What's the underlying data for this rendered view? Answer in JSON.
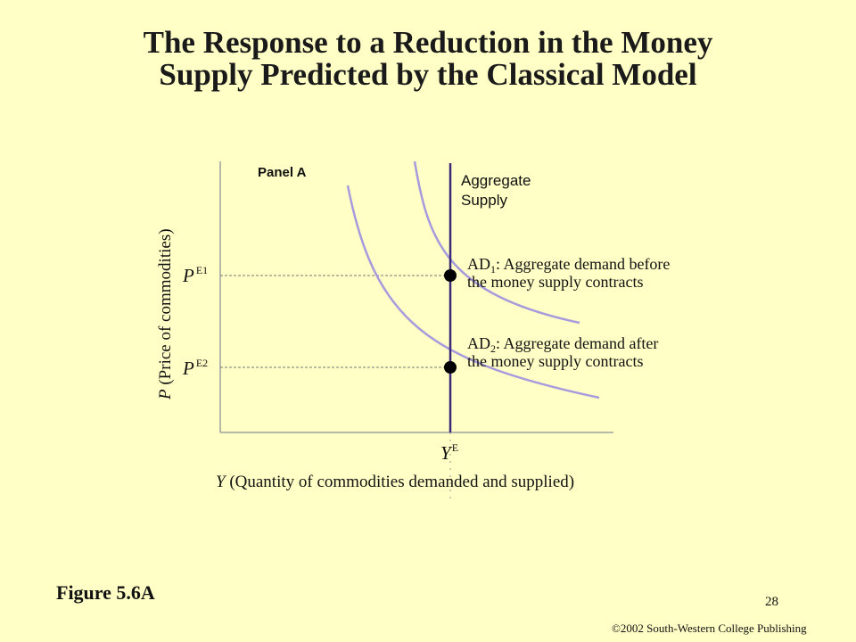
{
  "slide": {
    "title_line1": "The Response to a Reduction in the Money",
    "title_line2": "Supply Predicted by the Classical Model",
    "figure_label": "Figure 5.6A",
    "page_number": "28",
    "copyright": "©2002 South-Western College Publishing"
  },
  "diagram": {
    "panel_label": "Panel A",
    "y_axis": {
      "var": "P",
      "desc": " (Price of commodities)"
    },
    "x_axis": {
      "var": "Y",
      "desc": " (Quantity of commodities demanded and supplied)"
    },
    "price_ticks": [
      {
        "base": "P",
        "sup": "E1"
      },
      {
        "base": "P",
        "sup": "E2"
      }
    ],
    "output_tick": {
      "base": "Y",
      "sup": "E"
    },
    "supply_label": {
      "line1": "Aggregate",
      "line2": "Supply"
    },
    "ad1_label": {
      "base": "AD",
      "sub": "1",
      "line1_rest": ": Aggregate demand before",
      "line2": "the money supply contracts"
    },
    "ad2_label": {
      "base": "AD",
      "sub": "2",
      "line1_rest": ": Aggregate demand after",
      "line2": "the money supply contracts"
    },
    "colors": {
      "demand_curve": "#A79BDE",
      "supply_line": "#3A2A78",
      "axis": "#A0A0A0",
      "equilibrium_point": "#000000",
      "guide_line": "#777777"
    }
  }
}
